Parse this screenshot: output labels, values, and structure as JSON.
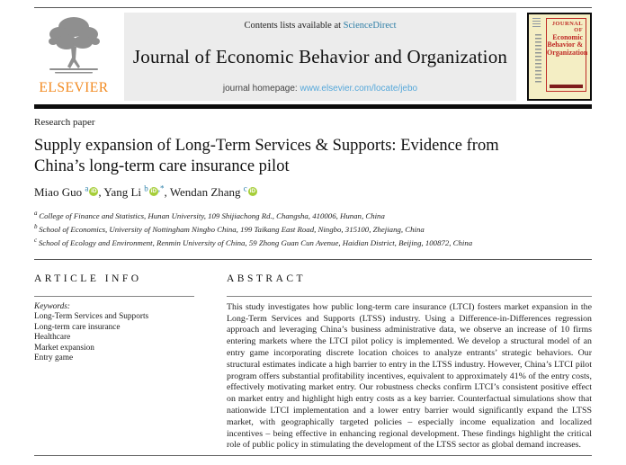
{
  "header": {
    "contents_line_prefix": "Contents lists available at ",
    "sciencedirect_link": "ScienceDirect",
    "journal_title": "Journal of Economic Behavior and Organization",
    "homepage_prefix": "journal homepage: ",
    "homepage_link": "www.elsevier.com/locate/jebo",
    "elsevier_logo_text": "ELSEVIER"
  },
  "cover": {
    "title_lines": [
      "JOURNAL OF",
      "Economic",
      "Behavior &",
      "Organization"
    ]
  },
  "article": {
    "type_label": "Research paper",
    "title_lines": [
      "Supply expansion of Long-Term Services & Supports: Evidence from",
      "China’s long-term care insurance pilot"
    ],
    "authors": [
      {
        "name": "Miao Guo",
        "sup": "a",
        "corresponding": false
      },
      {
        "name": "Yang Li",
        "sup": "b",
        "corresponding": true
      },
      {
        "name": "Wendan Zhang",
        "sup": "c",
        "corresponding": false
      }
    ],
    "corresponding_marker": ",*",
    "affiliations": [
      {
        "sup": "a",
        "text": "College of Finance and Statistics, Hunan University, 109 Shijiachong Rd., Changsha, 410006, Hunan, China"
      },
      {
        "sup": "b",
        "text": "School of Economics, University of Nottingham Ningbo China, 199 Taikang East Road, Ningbo, 315100, Zhejiang, China"
      },
      {
        "sup": "c",
        "text": "School of Ecology and Environment, Renmin University of China, 59 Zhong Guan Cun Avenue, Haidian District, Beijing, 100872, China"
      }
    ]
  },
  "article_info": {
    "heading": "ARTICLE INFO",
    "keywords_label": "Keywords:",
    "keywords": [
      "Long-Term Services and Supports",
      "Long-term care insurance",
      "Healthcare",
      "Market expansion",
      "Entry game"
    ]
  },
  "abstract": {
    "heading": "ABSTRACT",
    "text": "This study investigates how public long-term care insurance (LTCI) fosters market expansion in the Long-Term Services and Supports (LTSS) industry. Using a Difference-in-Differences regression approach and leveraging China’s business administrative data, we observe an increase of 10 firms entering markets where the LTCI pilot policy is implemented. We develop a structural model of an entry game incorporating discrete location choices to analyze entrants’ strategic behaviors. Our structural estimates indicate a high barrier to entry in the LTSS industry. However, China’s LTCI pilot program offers substantial profitability incentives, equivalent to approximately 41% of the entry costs, effectively motivating market entry. Our robustness checks confirm LTCI’s consistent positive effect on market entry and highlight high entry costs as a key barrier. Counterfactual simulations show that nationwide LTCI implementation and a lower entry barrier would significantly expand the LTSS market, with geographically targeted policies – especially income equalization and localized incentives – being effective in enhancing regional development. These findings highlight the critical role of public policy in stimulating the development of the LTSS sector as global demand increases."
  },
  "icons": {
    "orcid_label": "iD"
  },
  "colors": {
    "sciencedirect_link": "#2e7ea6",
    "homepage_link": "#56a8da",
    "elsevier_orange": "#f28a20",
    "orcid_green": "#a6ce39",
    "cover_red": "#bf2b26",
    "cover_maroon": "#7e1d1c",
    "cover_background": "#f4eec4",
    "header_box_gray": "#ececec"
  }
}
